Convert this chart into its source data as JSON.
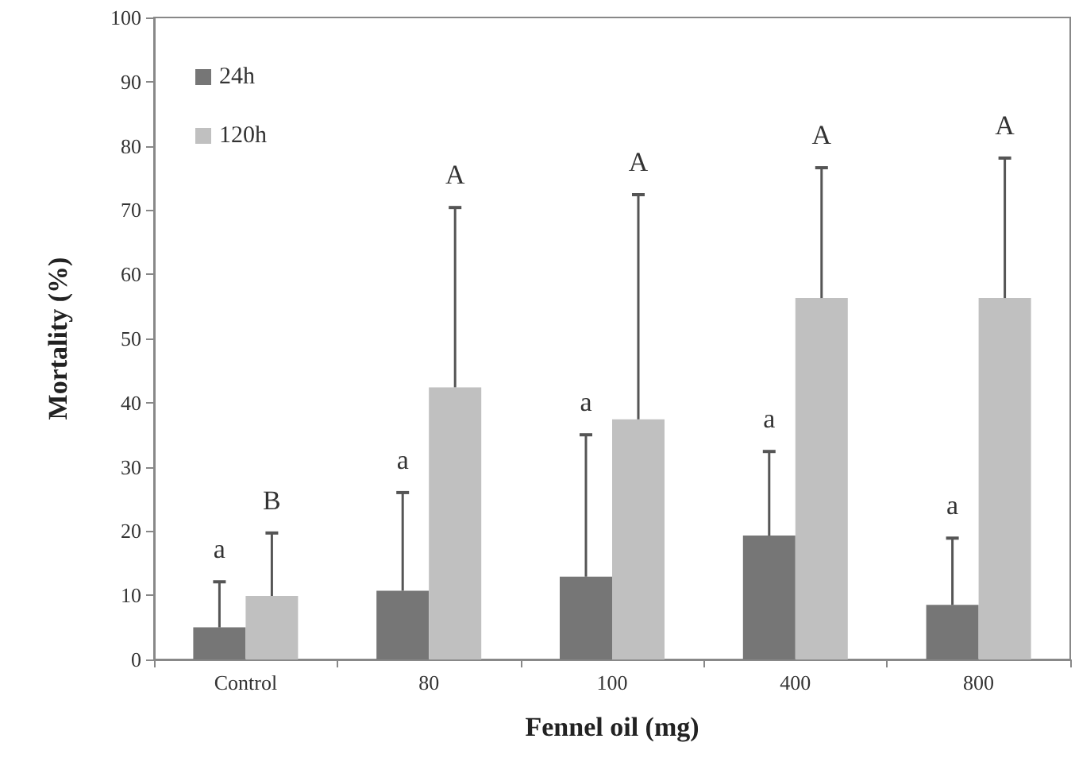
{
  "chart_data": {
    "type": "bar",
    "xlabel": "Fennel oil (mg)",
    "ylabel": "Mortality (%)",
    "categories": [
      "Control",
      "80",
      "100",
      "400",
      "800"
    ],
    "series": [
      {
        "name": "24h",
        "color": "#767676",
        "values": [
          5,
          10.7,
          12.9,
          19.3,
          8.5
        ],
        "errors": [
          [
            5,
            12.1
          ],
          [
            10.7,
            26
          ],
          [
            12.9,
            35
          ],
          [
            19.3,
            32.4
          ],
          [
            8.5,
            18.9
          ]
        ]
      },
      {
        "name": "120h",
        "color": "#c0c0c0",
        "values": [
          9.9,
          42.4,
          37.4,
          56.3,
          56.3
        ],
        "errors": [
          [
            9.9,
            19.7
          ],
          [
            42.4,
            70.4
          ],
          [
            37.4,
            72.4
          ],
          [
            56.3,
            76.6
          ],
          [
            56.3,
            78.1
          ]
        ]
      }
    ],
    "annotations": [
      "a",
      "B",
      "a",
      "A",
      "a",
      "A",
      "a",
      "A",
      "a",
      "A"
    ],
    "ylim": [
      0,
      100
    ],
    "yticks": [
      0,
      10,
      20,
      30,
      40,
      50,
      60,
      70,
      80,
      90,
      100
    ],
    "grid": false,
    "legend": "top left"
  }
}
